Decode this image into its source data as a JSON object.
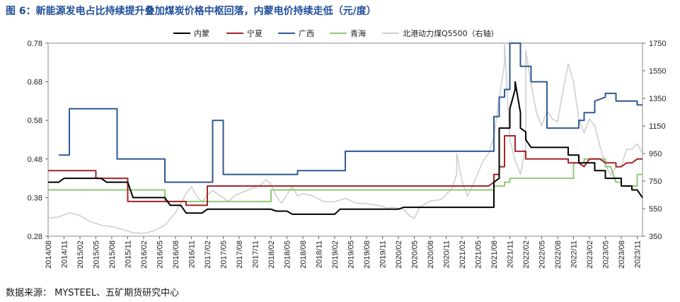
{
  "title": "图 6：新能源发电占比持续提升叠加煤炭价格中枢回落，内蒙电价持续走低（元/度）",
  "source": "数据来源： MYSTEEL、五矿期货研究中心",
  "chart_data": {
    "type": "line",
    "title": "图 6：新能源发电占比持续提升叠加煤炭价格中枢回落，内蒙电价持续走低（元/度）",
    "x_ticks": [
      "2014/08",
      "2014/11",
      "2015/02",
      "2015/05",
      "2015/08",
      "2015/11",
      "2016/02",
      "2016/05",
      "2016/08",
      "2016/11",
      "2017/02",
      "2017/05",
      "2017/08",
      "2017/11",
      "2018/02",
      "2018/05",
      "2018/08",
      "2018/11",
      "2019/02",
      "2019/05",
      "2019/08",
      "2019/11",
      "2020/02",
      "2020/05",
      "2020/08",
      "2020/11",
      "2021/02",
      "2021/05",
      "2021/08",
      "2021/11",
      "2022/02",
      "2022/05",
      "2022/08",
      "2022/11",
      "2023/02",
      "2023/05",
      "2023/08",
      "2023/11"
    ],
    "x_range": [
      "2014-08",
      "2023-12"
    ],
    "y_left": {
      "ticks": [
        0.28,
        0.38,
        0.48,
        0.58,
        0.68,
        0.78
      ],
      "range": [
        0.28,
        0.78
      ]
    },
    "y_right": {
      "ticks": [
        350,
        550,
        750,
        950,
        1150,
        1350,
        1550,
        1750
      ],
      "range": [
        350,
        1750
      ],
      "label": "右轴"
    },
    "legend": [
      "内蒙",
      "宁夏",
      "广西",
      "青海",
      "北港动力煤Q5500（右轴）"
    ],
    "legend_position": "top",
    "colors": {
      "内蒙": "#000000",
      "宁夏": "#a8222a",
      "广西": "#2e5a94",
      "青海": "#8fca72",
      "北港动力煤Q5500（右轴）": "#cfcfcf"
    },
    "series": [
      {
        "name": "内蒙",
        "axis": "left",
        "points": [
          [
            "2014-08",
            0.42
          ],
          [
            "2014-10",
            0.42
          ],
          [
            "2014-11",
            0.43
          ],
          [
            "2015-06",
            0.43
          ],
          [
            "2015-07",
            0.42
          ],
          [
            "2015-11",
            0.42
          ],
          [
            "2015-12",
            0.38
          ],
          [
            "2016-06",
            0.38
          ],
          [
            "2016-07",
            0.36
          ],
          [
            "2016-09",
            0.36
          ],
          [
            "2016-10",
            0.34
          ],
          [
            "2017-01",
            0.34
          ],
          [
            "2017-02",
            0.35
          ],
          [
            "2018-02",
            0.35
          ],
          [
            "2018-03",
            0.345
          ],
          [
            "2018-05",
            0.345
          ],
          [
            "2018-06",
            0.337
          ],
          [
            "2019-02",
            0.337
          ],
          [
            "2019-03",
            0.35
          ],
          [
            "2020-02",
            0.35
          ],
          [
            "2020-03",
            0.355
          ],
          [
            "2021-08",
            0.355
          ],
          [
            "2021-08",
            0.42
          ],
          [
            "2021-09",
            0.43
          ],
          [
            "2021-09",
            0.56
          ],
          [
            "2021-11",
            0.56
          ],
          [
            "2021-11",
            0.61
          ],
          [
            "2021-12",
            0.66
          ],
          [
            "2021-12",
            0.68
          ],
          [
            "2022-01",
            0.6
          ],
          [
            "2022-01",
            0.56
          ],
          [
            "2022-02",
            0.55
          ],
          [
            "2022-02",
            0.53
          ],
          [
            "2022-03",
            0.51
          ],
          [
            "2022-10",
            0.51
          ],
          [
            "2022-10",
            0.49
          ],
          [
            "2022-12",
            0.49
          ],
          [
            "2022-12",
            0.47
          ],
          [
            "2023-03",
            0.47
          ],
          [
            "2023-03",
            0.45
          ],
          [
            "2023-05",
            0.45
          ],
          [
            "2023-05",
            0.43
          ],
          [
            "2023-08",
            0.43
          ],
          [
            "2023-08",
            0.41
          ],
          [
            "2023-10",
            0.41
          ],
          [
            "2023-10",
            0.4
          ],
          [
            "2023-11",
            0.4
          ],
          [
            "2023-12",
            0.38
          ]
        ]
      },
      {
        "name": "宁夏",
        "axis": "left",
        "points": [
          [
            "2014-08",
            0.45
          ],
          [
            "2015-05",
            0.45
          ],
          [
            "2015-05",
            0.43
          ],
          [
            "2015-11",
            0.43
          ],
          [
            "2015-11",
            0.37
          ],
          [
            "2016-10",
            0.37
          ],
          [
            "2016-10",
            0.36
          ],
          [
            "2017-02",
            0.36
          ],
          [
            "2017-02",
            0.41
          ],
          [
            "2021-07",
            0.41
          ],
          [
            "2021-08",
            0.42
          ],
          [
            "2021-08",
            0.44
          ],
          [
            "2021-09",
            0.44
          ],
          [
            "2021-09",
            0.46
          ],
          [
            "2021-10",
            0.46
          ],
          [
            "2021-10",
            0.54
          ],
          [
            "2021-12",
            0.54
          ],
          [
            "2021-12",
            0.5
          ],
          [
            "2022-02",
            0.5
          ],
          [
            "2022-02",
            0.48
          ],
          [
            "2022-10",
            0.48
          ],
          [
            "2022-10",
            0.47
          ],
          [
            "2022-12",
            0.47
          ],
          [
            "2023-01",
            0.46
          ],
          [
            "2023-02",
            0.48
          ],
          [
            "2023-04",
            0.48
          ],
          [
            "2023-05",
            0.47
          ],
          [
            "2023-07",
            0.47
          ],
          [
            "2023-07",
            0.46
          ],
          [
            "2023-08",
            0.46
          ],
          [
            "2023-09",
            0.47
          ],
          [
            "2023-10",
            0.47
          ],
          [
            "2023-11",
            0.48
          ],
          [
            "2023-12",
            0.48
          ]
        ]
      },
      {
        "name": "广西",
        "axis": "left",
        "points": [
          [
            "2014-10",
            0.49
          ],
          [
            "2014-12",
            0.49
          ],
          [
            "2014-12",
            0.61
          ],
          [
            "2015-09",
            0.61
          ],
          [
            "2015-09",
            0.48
          ],
          [
            "2016-06",
            0.48
          ],
          [
            "2016-06",
            0.42
          ],
          [
            "2017-03",
            0.42
          ],
          [
            "2017-03",
            0.58
          ],
          [
            "2017-05",
            0.58
          ],
          [
            "2017-05",
            0.44
          ],
          [
            "2018-07",
            0.44
          ],
          [
            "2018-07",
            0.45
          ],
          [
            "2019-04",
            0.45
          ],
          [
            "2019-04",
            0.5
          ],
          [
            "2021-08",
            0.5
          ],
          [
            "2021-08",
            0.59
          ],
          [
            "2021-09",
            0.59
          ],
          [
            "2021-09",
            0.64
          ],
          [
            "2021-10",
            0.64
          ],
          [
            "2021-10",
            0.66
          ],
          [
            "2021-11",
            0.66
          ],
          [
            "2021-11",
            0.78
          ],
          [
            "2022-01",
            0.78
          ],
          [
            "2022-01",
            0.72
          ],
          [
            "2022-03",
            0.72
          ],
          [
            "2022-03",
            0.68
          ],
          [
            "2022-06",
            0.68
          ],
          [
            "2022-06",
            0.56
          ],
          [
            "2022-12",
            0.56
          ],
          [
            "2022-12",
            0.58
          ],
          [
            "2023-01",
            0.58
          ],
          [
            "2023-01",
            0.6
          ],
          [
            "2023-03",
            0.6
          ],
          [
            "2023-03",
            0.63
          ],
          [
            "2023-05",
            0.64
          ],
          [
            "2023-05",
            0.65
          ],
          [
            "2023-07",
            0.65
          ],
          [
            "2023-07",
            0.63
          ],
          [
            "2023-11",
            0.63
          ],
          [
            "2023-11",
            0.62
          ],
          [
            "2023-12",
            0.62
          ]
        ]
      },
      {
        "name": "青海",
        "axis": "left",
        "points": [
          [
            "2014-08",
            0.4
          ],
          [
            "2016-06",
            0.4
          ],
          [
            "2016-06",
            0.37
          ],
          [
            "2018-02",
            0.37
          ],
          [
            "2018-02",
            0.4
          ],
          [
            "2021-08",
            0.4
          ],
          [
            "2021-08",
            0.41
          ],
          [
            "2021-10",
            0.41
          ],
          [
            "2021-10",
            0.42
          ],
          [
            "2021-11",
            0.42
          ],
          [
            "2021-11",
            0.43
          ],
          [
            "2022-11",
            0.43
          ],
          [
            "2022-11",
            0.47
          ],
          [
            "2023-01",
            0.47
          ],
          [
            "2023-01",
            0.48
          ],
          [
            "2023-05",
            0.48
          ],
          [
            "2023-05",
            0.46
          ],
          [
            "2023-06",
            0.46
          ],
          [
            "2023-07",
            0.42
          ],
          [
            "2023-08",
            0.42
          ],
          [
            "2023-08",
            0.41
          ],
          [
            "2023-11",
            0.41
          ],
          [
            "2023-11",
            0.44
          ],
          [
            "2023-12",
            0.44
          ]
        ]
      },
      {
        "name": "北港动力煤Q5500（右轴）",
        "axis": "right",
        "points": [
          [
            "2014-08",
            480
          ],
          [
            "2014-10",
            490
          ],
          [
            "2014-12",
            520
          ],
          [
            "2015-02",
            500
          ],
          [
            "2015-04",
            455
          ],
          [
            "2015-06",
            430
          ],
          [
            "2015-08",
            420
          ],
          [
            "2015-10",
            400
          ],
          [
            "2015-12",
            375
          ],
          [
            "2016-02",
            370
          ],
          [
            "2016-04",
            390
          ],
          [
            "2016-06",
            430
          ],
          [
            "2016-08",
            520
          ],
          [
            "2016-10",
            660
          ],
          [
            "2016-11",
            710
          ],
          [
            "2016-12",
            640
          ],
          [
            "2017-01",
            600
          ],
          [
            "2017-02",
            650
          ],
          [
            "2017-03",
            680
          ],
          [
            "2017-05",
            630
          ],
          [
            "2017-06",
            600
          ],
          [
            "2017-07",
            640
          ],
          [
            "2017-08",
            660
          ],
          [
            "2017-10",
            690
          ],
          [
            "2017-12",
            720
          ],
          [
            "2018-01",
            760
          ],
          [
            "2018-02",
            730
          ],
          [
            "2018-03",
            640
          ],
          [
            "2018-04",
            590
          ],
          [
            "2018-05",
            650
          ],
          [
            "2018-06",
            710
          ],
          [
            "2018-07",
            640
          ],
          [
            "2018-08",
            660
          ],
          [
            "2018-10",
            640
          ],
          [
            "2018-12",
            600
          ],
          [
            "2019-02",
            600
          ],
          [
            "2019-04",
            625
          ],
          [
            "2019-06",
            590
          ],
          [
            "2019-08",
            585
          ],
          [
            "2019-10",
            575
          ],
          [
            "2019-12",
            555
          ],
          [
            "2020-01",
            560
          ],
          [
            "2020-03",
            545
          ],
          [
            "2020-04",
            500
          ],
          [
            "2020-05",
            480
          ],
          [
            "2020-06",
            560
          ],
          [
            "2020-08",
            605
          ],
          [
            "2020-10",
            615
          ],
          [
            "2020-12",
            690
          ],
          [
            "2021-01",
            800
          ],
          [
            "2021-01",
            950
          ],
          [
            "2021-02",
            750
          ],
          [
            "2021-03",
            640
          ],
          [
            "2021-04",
            720
          ],
          [
            "2021-06",
            900
          ],
          [
            "2021-07",
            950
          ],
          [
            "2021-08",
            1070
          ],
          [
            "2021-09",
            1350
          ],
          [
            "2021-10",
            1600
          ],
          [
            "2021-10",
            1750
          ],
          [
            "2021-11",
            1050
          ],
          [
            "2021-12",
            900
          ],
          [
            "2022-01",
            800
          ],
          [
            "2022-02",
            1000
          ],
          [
            "2022-02",
            1700
          ],
          [
            "2022-03",
            1450
          ],
          [
            "2022-04",
            1250
          ],
          [
            "2022-05",
            1150
          ],
          [
            "2022-06",
            1260
          ],
          [
            "2022-07",
            1200
          ],
          [
            "2022-08",
            1180
          ],
          [
            "2022-09",
            1400
          ],
          [
            "2022-10",
            1600
          ],
          [
            "2022-11",
            1470
          ],
          [
            "2022-12",
            1200
          ],
          [
            "2023-01",
            1100
          ],
          [
            "2023-02",
            1200
          ],
          [
            "2023-03",
            1150
          ],
          [
            "2023-04",
            1000
          ],
          [
            "2023-05",
            870
          ],
          [
            "2023-06",
            790
          ],
          [
            "2023-07",
            850
          ],
          [
            "2023-08",
            860
          ],
          [
            "2023-09",
            980
          ],
          [
            "2023-10",
            980
          ],
          [
            "2023-11",
            1020
          ],
          [
            "2023-12",
            950
          ]
        ]
      }
    ]
  }
}
